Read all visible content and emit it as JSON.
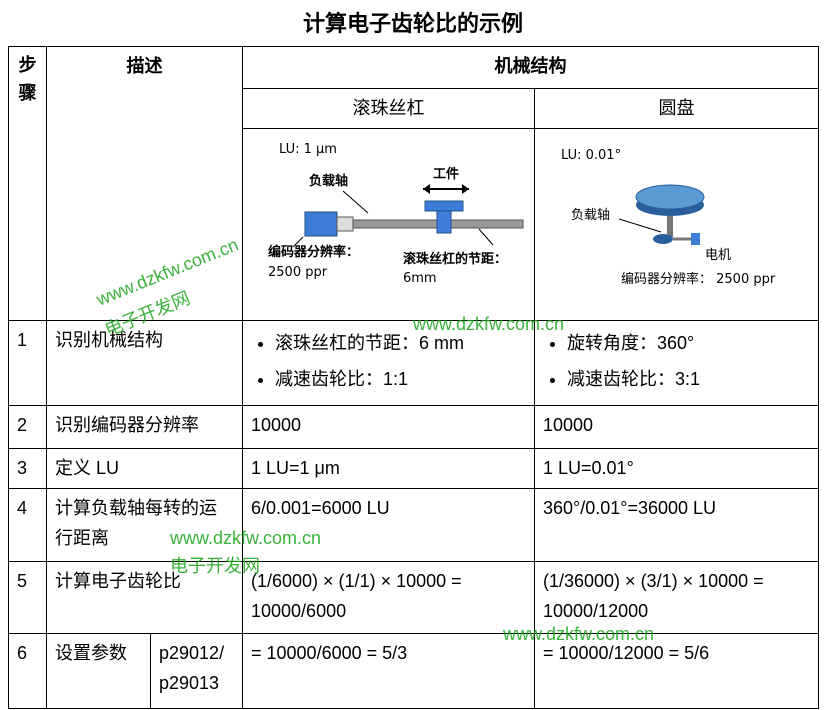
{
  "title": "计算电子齿轮比的示例",
  "table": {
    "header": {
      "step": "步骤",
      "description": "描述",
      "mechanics": "机械结构",
      "ball_screw": "滚珠丝杠",
      "disk": "圆盘"
    },
    "diagrams": {
      "ball_screw": {
        "lu": "LU: 1 μm",
        "load_shaft": "负载轴",
        "workpiece": "工件",
        "encoder": "编码器分辨率：",
        "encoder_value": "2500 ppr",
        "pitch": "滚珠丝杠的节距：",
        "pitch_value": "6mm"
      },
      "disk": {
        "lu": "LU: 0.01°",
        "load_shaft": "负载轴",
        "motor": "电机",
        "encoder": "编码器分辨率： 2500 ppr"
      }
    },
    "rows": [
      {
        "step": "1",
        "description": "识别机械结构",
        "ball_screw": [
          "滚珠丝杠的节距：6 mm",
          "减速齿轮比：1:1"
        ],
        "disk": [
          "旋转角度：360°",
          "减速齿轮比：3:1"
        ]
      },
      {
        "step": "2",
        "description": "识别编码器分辨率",
        "ball_screw": "10000",
        "disk": "10000"
      },
      {
        "step": "3",
        "description": "定义 LU",
        "ball_screw": "1 LU=1 μm",
        "disk": "1 LU=0.01°"
      },
      {
        "step": "4",
        "description": "计算负载轴每转的运行距离",
        "ball_screw": "6/0.001=6000 LU",
        "disk": "360°/0.01°=36000 LU"
      },
      {
        "step": "5",
        "description": "计算电子齿轮比",
        "ball_screw": "(1/6000) × (1/1) × 10000 = 10000/6000",
        "disk": "(1/36000) × (3/1) × 10000 = 10000/12000"
      },
      {
        "step": "6",
        "description": "设置参数",
        "parameters": [
          "p29012/",
          "p29013"
        ],
        "ball_screw": "= 10000/6000 = 5/3",
        "disk": "= 10000/12000 = 5/6"
      }
    ]
  },
  "watermarks": [
    "www.dzkfw.com.cn",
    "电子开发网",
    "www.dzkfw.com.cn",
    "www.dzkfw.com.cn",
    "电子开发网",
    "www.dzkfw.com.cn"
  ]
}
